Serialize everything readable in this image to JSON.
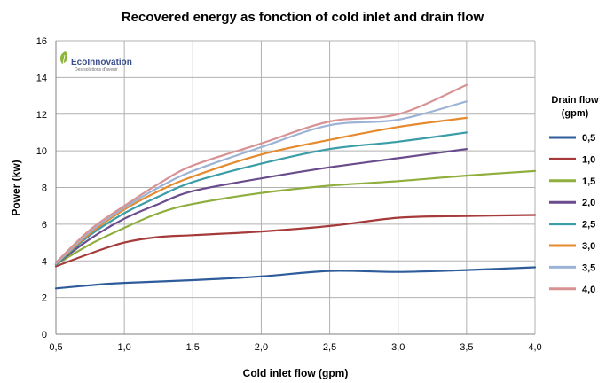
{
  "chart_data": {
    "type": "line",
    "title": "Recovered energy as fonction of cold inlet and drain flow",
    "xlabel": "Cold inlet flow (gpm)",
    "ylabel": "Power (kw)",
    "xlim": [
      0.5,
      4.0
    ],
    "ylim": [
      0,
      16
    ],
    "x_ticks": [
      "0,5",
      "1,0",
      "1,5",
      "2,0",
      "2,5",
      "3,0",
      "3,5",
      "4,0"
    ],
    "y_ticks": [
      "0",
      "2",
      "4",
      "6",
      "8",
      "10",
      "12",
      "14",
      "16"
    ],
    "grid": "vertical and horizontal",
    "legend": {
      "title_line1": "Drain flow",
      "title_line2": "(gpm)",
      "placement": "right"
    },
    "series": [
      {
        "name": "0,5",
        "color": "#2E5C9A",
        "x": [
          0.5,
          0.8,
          1.0,
          1.5,
          2.0,
          2.5,
          3.0,
          3.5,
          4.0
        ],
        "y": [
          2.5,
          2.7,
          2.8,
          2.95,
          3.15,
          3.45,
          3.4,
          3.5,
          3.65
        ]
      },
      {
        "name": "1,0",
        "color": "#A63A3A",
        "x": [
          0.5,
          0.75,
          1.0,
          1.25,
          1.5,
          2.0,
          2.5,
          3.0,
          3.5,
          4.0
        ],
        "y": [
          3.7,
          4.4,
          5.0,
          5.3,
          5.4,
          5.6,
          5.9,
          6.35,
          6.45,
          6.5
        ]
      },
      {
        "name": "1,5",
        "color": "#8FAE3E",
        "x": [
          0.5,
          0.75,
          1.0,
          1.25,
          1.5,
          2.0,
          2.5,
          3.0,
          3.5,
          4.0
        ],
        "y": [
          3.8,
          4.9,
          5.8,
          6.6,
          7.1,
          7.7,
          8.1,
          8.35,
          8.65,
          8.9
        ]
      },
      {
        "name": "2,0",
        "color": "#6A4C8C",
        "x": [
          0.5,
          0.75,
          1.0,
          1.25,
          1.5,
          2.0,
          2.5,
          3.0,
          3.5
        ],
        "y": [
          3.8,
          5.2,
          6.3,
          7.1,
          7.8,
          8.5,
          9.1,
          9.6,
          10.1
        ]
      },
      {
        "name": "2,5",
        "color": "#3A9DA8",
        "x": [
          0.5,
          0.75,
          1.0,
          1.25,
          1.5,
          2.0,
          2.5,
          3.0,
          3.5
        ],
        "y": [
          3.8,
          5.4,
          6.6,
          7.5,
          8.3,
          9.3,
          10.1,
          10.5,
          11.0
        ]
      },
      {
        "name": "3,0",
        "color": "#E58A2E",
        "x": [
          0.5,
          0.75,
          1.0,
          1.25,
          1.5,
          2.0,
          2.5,
          3.0,
          3.5
        ],
        "y": [
          3.85,
          5.5,
          6.8,
          7.8,
          8.6,
          9.8,
          10.6,
          11.3,
          11.8
        ]
      },
      {
        "name": "3,5",
        "color": "#9DB3D6",
        "x": [
          0.5,
          0.75,
          1.0,
          1.25,
          1.5,
          2.0,
          2.5,
          3.0,
          3.5
        ],
        "y": [
          3.85,
          5.6,
          6.9,
          8.0,
          8.9,
          10.2,
          11.4,
          11.7,
          12.7
        ]
      },
      {
        "name": "4,0",
        "color": "#D99294",
        "x": [
          0.5,
          0.75,
          1.0,
          1.25,
          1.5,
          2.0,
          2.5,
          3.0,
          3.5
        ],
        "y": [
          3.9,
          5.7,
          7.0,
          8.2,
          9.2,
          10.4,
          11.6,
          12.0,
          13.6
        ]
      }
    ]
  },
  "logo": {
    "name": "EcoInnovation",
    "tagline": "Des solutions d'avenir"
  }
}
